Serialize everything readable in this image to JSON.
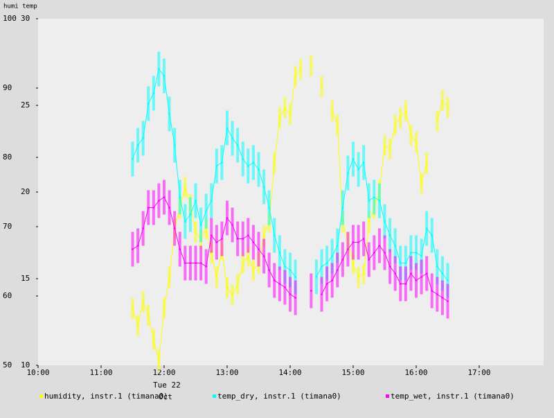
{
  "chart_data": {
    "type": "line",
    "axis_title": "humi temp",
    "date_label": [
      "Tue 22",
      "Oct"
    ],
    "x": [
      "11:30",
      "11:35",
      "11:40",
      "11:45",
      "11:50",
      "11:55",
      "12:00",
      "12:05",
      "12:10",
      "12:15",
      "12:20",
      "12:25",
      "12:30",
      "12:35",
      "12:40",
      "12:45",
      "12:50",
      "12:55",
      "13:00",
      "13:05",
      "13:10",
      "13:15",
      "13:20",
      "13:25",
      "13:30",
      "13:35",
      "13:40",
      "13:45",
      "13:50",
      "13:55",
      "14:00",
      "14:05",
      "14:10",
      "14:15",
      "14:20",
      "14:25",
      "14:30",
      "14:35",
      "14:40",
      "14:45",
      "14:50",
      "14:55",
      "15:00",
      "15:05",
      "15:10",
      "15:15",
      "15:20",
      "15:25",
      "15:30",
      "15:35",
      "15:40",
      "15:45",
      "15:50",
      "15:55",
      "16:00",
      "16:05",
      "16:10",
      "16:15",
      "16:20",
      "16:25",
      "16:30"
    ],
    "xlim": [
      "10:00",
      "18:00"
    ],
    "xticks": [
      "10:00",
      "11:00",
      "12:00",
      "13:00",
      "14:00",
      "15:00",
      "16:00",
      "17:00"
    ],
    "ylim": [
      50,
      100
    ],
    "yticks": [
      50,
      60,
      70,
      80,
      90,
      100
    ],
    "y2lim": [
      10,
      30
    ],
    "y2ticks": [
      10,
      15,
      20,
      25,
      30
    ],
    "series": [
      {
        "name": "humidity, instr.1 (timana0)",
        "color": "#ffff00",
        "error": 1.5,
        "values": [
          58.2,
          55.7,
          59.2,
          57.2,
          53.7,
          50.7,
          58.2,
          62.7,
          69.7,
          72.7,
          75.7,
          73.2,
          69.2,
          68.2,
          69.7,
          66.2,
          62.7,
          66.7,
          61.2,
          60.2,
          61.7,
          64.7,
          65.7,
          63.7,
          64.7,
          68.7,
          70.7,
          79.2,
          85.7,
          87.2,
          86.2,
          91.7,
          92.7,
          null,
          93.2,
          null,
          90.2,
          null,
          86.7,
          84.7,
          70.7,
          67.7,
          64.7,
          62.7,
          63.2,
          70.7,
          72.7,
          75.2,
          81.7,
          81.2,
          84.7,
          85.7,
          86.7,
          83.2,
          82.2,
          76.2,
          79.2,
          null,
          85.2,
          88.2,
          87.2
        ]
      },
      {
        "name": "temp_dry, instr.1 (timana0)",
        "color": "#00ffff",
        "axis": "y2",
        "error": 1,
        "values": [
          21.9,
          22.7,
          23.1,
          25.1,
          25.7,
          27.1,
          26.7,
          24.5,
          22.7,
          19.7,
          18.3,
          18.7,
          19.5,
          18.1,
          18.9,
          19.5,
          21.5,
          21.7,
          23.7,
          23.1,
          22.7,
          21.9,
          21.5,
          21.7,
          21.3,
          20.3,
          19.1,
          17.5,
          16.5,
          15.7,
          15.5,
          15.1,
          null,
          null,
          null,
          15.1,
          15.7,
          15.9,
          16.3,
          16.9,
          19.1,
          21.1,
          21.9,
          21.3,
          21.7,
          19.5,
          19.7,
          19.5,
          18.3,
          17.5,
          16.9,
          15.9,
          15.9,
          16.5,
          16.5,
          16.3,
          17.9,
          17.5,
          15.7,
          15.3,
          14.9
        ]
      },
      {
        "name": "temp_wet, instr.1 (timana0)",
        "color": "#ff00ff",
        "axis": "y2",
        "error": 1,
        "values": [
          16.7,
          16.9,
          17.9,
          19.1,
          19.1,
          19.5,
          19.7,
          19.1,
          17.9,
          16.7,
          15.9,
          15.9,
          15.9,
          15.9,
          15.7,
          17.5,
          17.1,
          17.3,
          18.5,
          18.1,
          17.3,
          17.3,
          17.5,
          17.1,
          16.7,
          16.3,
          15.5,
          14.9,
          14.7,
          14.5,
          14.1,
          13.9,
          null,
          null,
          14.3,
          null,
          14.1,
          14.7,
          14.9,
          15.5,
          16.1,
          16.7,
          17.1,
          17.1,
          17.3,
          16.1,
          16.5,
          16.9,
          16.5,
          15.7,
          15.3,
          14.7,
          14.7,
          15.3,
          14.9,
          15.1,
          15.3,
          14.3,
          14.1,
          13.9,
          13.7
        ]
      }
    ]
  }
}
